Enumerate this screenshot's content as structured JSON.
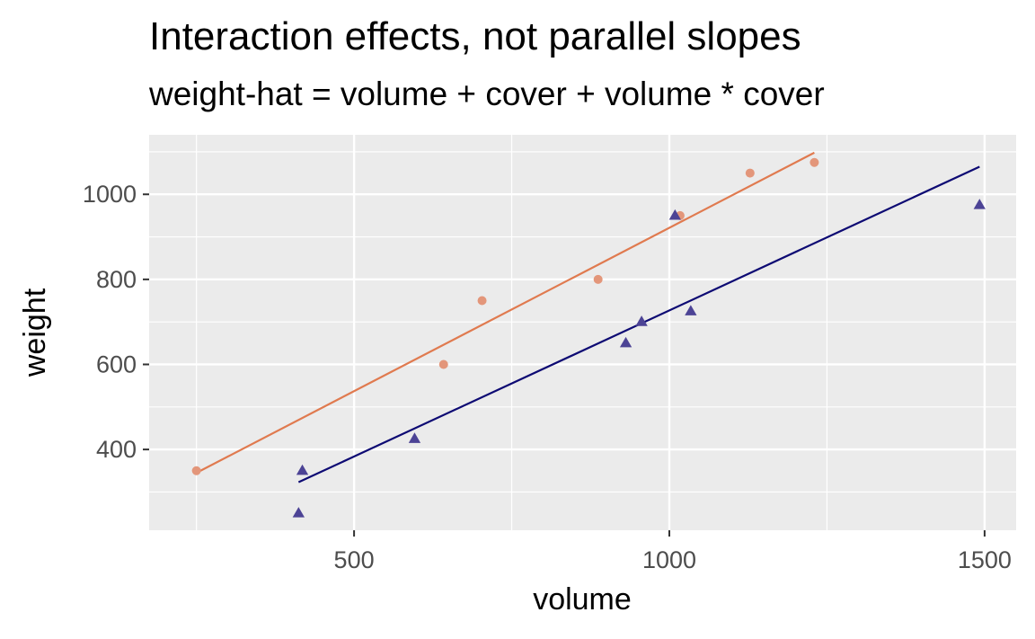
{
  "chart_data": {
    "type": "scatter",
    "title": "Interaction effects, not parallel slopes",
    "subtitle": "weight-hat = volume + cover + volume * cover",
    "xlabel": "volume",
    "ylabel": "weight",
    "xlim": [
      175,
      1550
    ],
    "ylim": [
      210,
      1140
    ],
    "x_ticks": [
      500,
      1000,
      1500
    ],
    "y_ticks": [
      400,
      600,
      800,
      1000
    ],
    "grid": true,
    "legend": "none",
    "series": [
      {
        "color": "#e07a4f",
        "point_color": "#e3967a",
        "marker": "circle",
        "points": [
          {
            "x": 250,
            "y": 350
          },
          {
            "x": 642,
            "y": 600
          },
          {
            "x": 703,
            "y": 750
          },
          {
            "x": 887,
            "y": 800
          },
          {
            "x": 1017,
            "y": 950
          },
          {
            "x": 1128,
            "y": 1050
          },
          {
            "x": 1230,
            "y": 1075
          }
        ],
        "fit_line": [
          {
            "x": 250,
            "y": 345
          },
          {
            "x": 1230,
            "y": 1098
          }
        ]
      },
      {
        "color": "#0d0a73",
        "point_color": "#4c4395",
        "marker": "triangle",
        "points": [
          {
            "x": 412,
            "y": 250
          },
          {
            "x": 418,
            "y": 350
          },
          {
            "x": 596,
            "y": 425
          },
          {
            "x": 931,
            "y": 650
          },
          {
            "x": 956,
            "y": 700
          },
          {
            "x": 1009,
            "y": 950
          },
          {
            "x": 1034,
            "y": 725
          },
          {
            "x": 1492,
            "y": 975
          }
        ],
        "fit_line": [
          {
            "x": 412,
            "y": 323
          },
          {
            "x": 1492,
            "y": 1065
          }
        ]
      }
    ]
  }
}
